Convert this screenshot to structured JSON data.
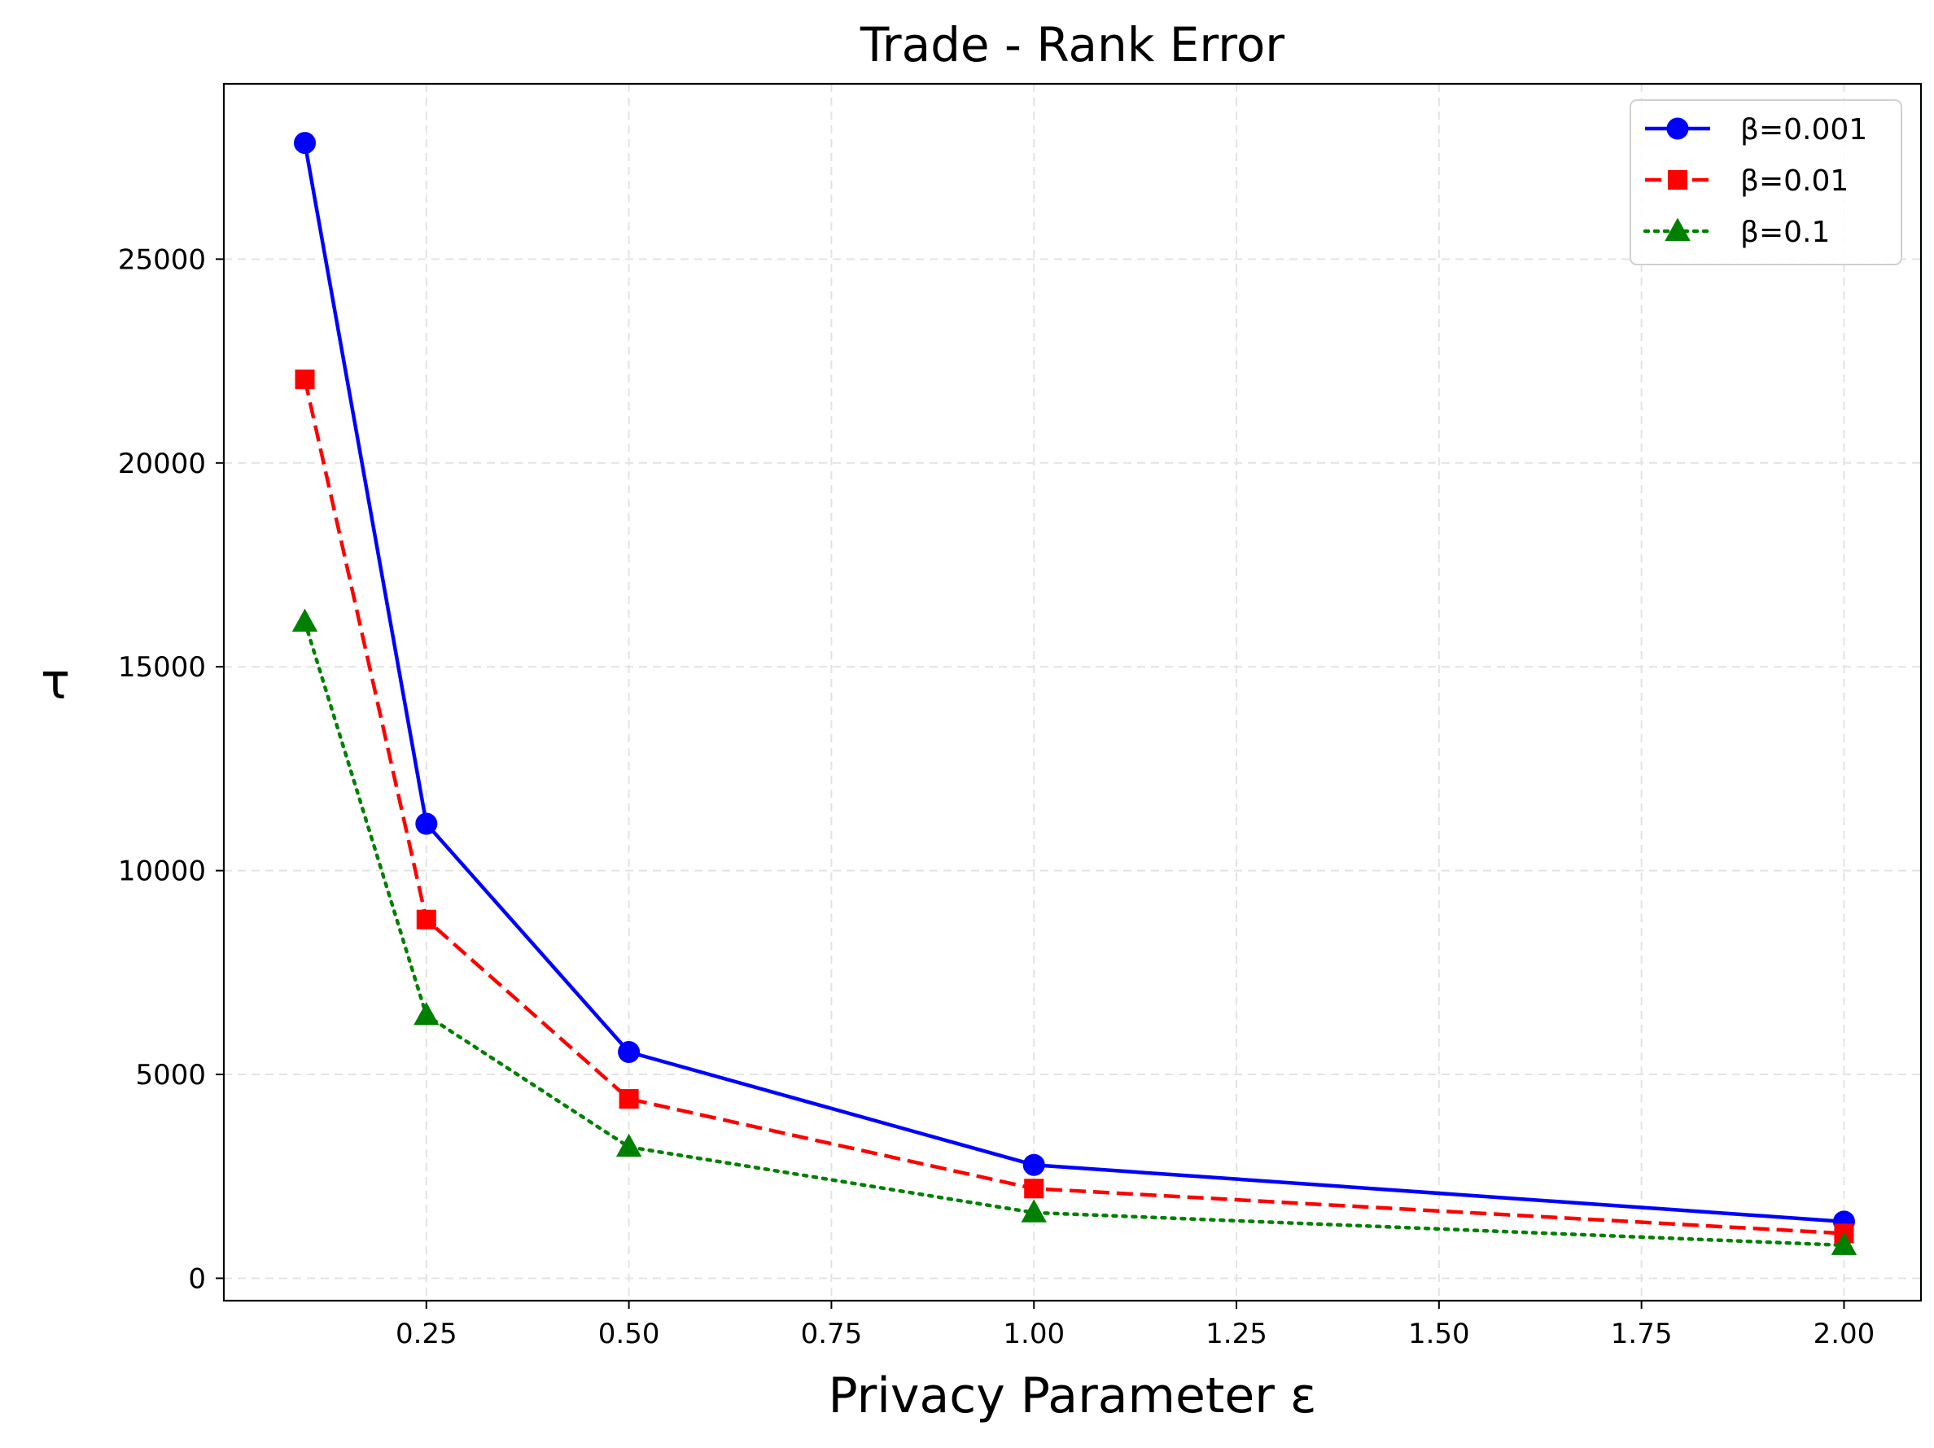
{
  "chart_data": {
    "type": "line",
    "title": "Trade - Rank Error",
    "xlabel": "Privacy Parameter ε",
    "ylabel": "τ",
    "xlim": [
      0.0,
      2.095
    ],
    "ylim": [
      -550,
      29300
    ],
    "xticks": [
      0.25,
      0.5,
      0.75,
      1.0,
      1.25,
      1.5,
      1.75,
      2.0
    ],
    "xtick_labels": [
      "0.25",
      "0.50",
      "0.75",
      "1.00",
      "1.25",
      "1.50",
      "1.75",
      "2.00"
    ],
    "yticks": [
      0,
      5000,
      10000,
      15000,
      20000,
      25000
    ],
    "ytick_labels": [
      "0",
      "5000",
      "10000",
      "15000",
      "20000",
      "25000"
    ],
    "grid": true,
    "legend_position": "upper right",
    "x": [
      0.1,
      0.25,
      0.5,
      1.0,
      2.0
    ],
    "series": [
      {
        "name": "β=0.001",
        "values": [
          27850,
          11150,
          5550,
          2780,
          1390
        ],
        "color": "#0000ff",
        "marker": "circle",
        "line_style": "solid"
      },
      {
        "name": "β=0.01",
        "values": [
          22050,
          8800,
          4400,
          2200,
          1100
        ],
        "color": "#ff0000",
        "marker": "square",
        "line_style": "dashed"
      },
      {
        "name": "β=0.1",
        "values": [
          16100,
          6450,
          3220,
          1610,
          810
        ],
        "color": "#008000",
        "marker": "triangle",
        "line_style": "dotted"
      }
    ]
  }
}
